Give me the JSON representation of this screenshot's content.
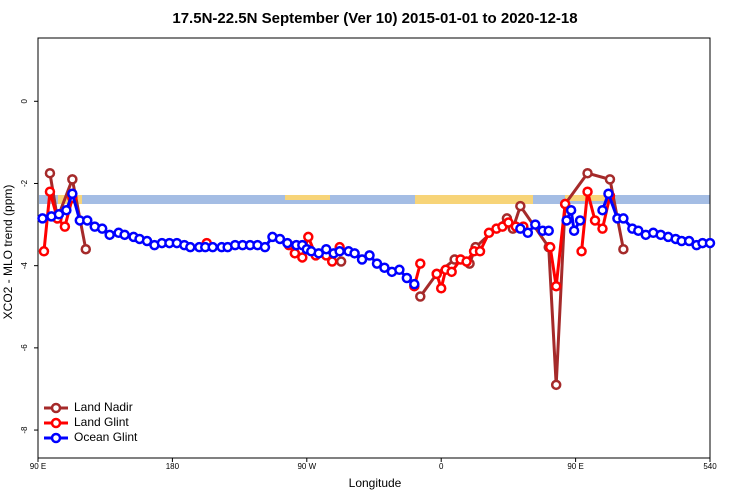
{
  "chart_data": {
    "type": "line",
    "title": "17.5N-22.5N September (Ver 10)   2015-01-01 to 2020-12-18",
    "xlabel": "Longitude",
    "ylabel": "XCO2 - MLO trend (ppm)",
    "xlim": [
      90,
      540
    ],
    "ylim": [
      -8.68,
      1.54
    ],
    "xticks": [
      {
        "value": 90,
        "label": "90 E"
      },
      180,
      {
        "value": 270,
        "label": "90 W"
      },
      {
        "value": 360,
        "label": "0"
      },
      {
        "value": 450,
        "label": "90 E"
      },
      540
    ],
    "yticks": [
      0,
      -2,
      -4,
      -6,
      -8
    ],
    "legend": "bottom-left",
    "series": [
      {
        "name": "Land Nadir",
        "color": "#a52a2a",
        "x": [
          98,
          103,
          113,
          122,
          null,
          293,
          null,
          346,
          357,
          369,
          379,
          383,
          404,
          408,
          413,
          432,
          437,
          443,
          458,
          473,
          482
        ],
        "values": [
          -1.75,
          -2.85,
          -1.9,
          -3.6,
          null,
          -3.9,
          null,
          -4.75,
          -4.2,
          -3.85,
          -3.95,
          -3.55,
          -2.85,
          -3.1,
          -2.55,
          -3.55,
          -6.9,
          -2.5,
          -1.75,
          -1.9,
          -3.6
        ]
      },
      {
        "name": "Land Glint",
        "color": "#ff0000",
        "x": [
          94,
          98,
          103,
          108,
          113,
          null,
          203,
          null,
          258,
          262,
          267,
          271,
          276,
          283,
          287,
          292,
          null,
          342,
          346,
          null,
          357,
          360,
          363,
          367,
          373,
          377,
          382,
          386,
          392,
          397,
          401,
          405,
          410,
          415,
          null,
          433,
          437,
          443,
          null,
          454,
          458,
          463,
          468,
          473
        ],
        "values": [
          -3.65,
          -2.2,
          -2.85,
          -3.05,
          -2.35,
          null,
          -3.45,
          null,
          -3.5,
          -3.7,
          -3.8,
          -3.3,
          -3.75,
          -3.75,
          -3.9,
          -3.55,
          null,
          -4.5,
          -3.95,
          null,
          -4.2,
          -4.55,
          -4.1,
          -4.15,
          -3.85,
          -3.9,
          -3.65,
          -3.65,
          -3.2,
          -3.1,
          -3.05,
          -2.95,
          -3.05,
          -3.05,
          null,
          -3.55,
          -4.5,
          -2.5,
          null,
          -3.65,
          -2.2,
          -2.9,
          -3.1,
          -2.3
        ]
      },
      {
        "name": "Ocean Glint",
        "color": "#0000ff",
        "x": [
          93,
          99,
          104,
          109,
          113,
          118,
          123,
          128,
          133,
          138,
          144,
          148,
          154,
          158,
          163,
          168,
          173,
          178,
          183,
          188,
          192,
          198,
          202,
          207,
          213,
          217,
          222,
          227,
          232,
          237,
          242,
          247,
          252,
          257,
          263,
          267,
          270,
          273,
          278,
          283,
          288,
          292,
          298,
          302,
          307,
          312,
          317,
          322,
          327,
          332,
          337,
          342,
          null,
          413,
          418,
          423,
          428,
          432,
          null,
          444,
          447,
          449,
          453,
          null,
          468,
          472,
          478,
          482,
          488,
          492,
          497,
          502,
          507,
          512,
          517,
          521,
          526,
          531,
          535,
          540
        ],
        "values": [
          -2.85,
          -2.8,
          -2.75,
          -2.65,
          -2.25,
          -2.9,
          -2.9,
          -3.05,
          -3.1,
          -3.25,
          -3.2,
          -3.25,
          -3.3,
          -3.35,
          -3.4,
          -3.5,
          -3.45,
          -3.45,
          -3.45,
          -3.5,
          -3.55,
          -3.55,
          -3.55,
          -3.55,
          -3.55,
          -3.55,
          -3.5,
          -3.5,
          -3.5,
          -3.5,
          -3.55,
          -3.3,
          -3.35,
          -3.45,
          -3.5,
          -3.5,
          -3.6,
          -3.65,
          -3.7,
          -3.6,
          -3.7,
          -3.65,
          -3.65,
          -3.7,
          -3.85,
          -3.75,
          -3.95,
          -4.05,
          -4.15,
          -4.1,
          -4.3,
          -4.45,
          null,
          -3.1,
          -3.2,
          -3.0,
          -3.15,
          -3.15,
          null,
          -2.9,
          -2.65,
          -3.15,
          -2.9,
          null,
          -2.65,
          -2.25,
          -2.85,
          -2.85,
          -3.1,
          -3.15,
          -3.25,
          -3.2,
          -3.25,
          -3.3,
          -3.35,
          -3.4,
          -3.4,
          -3.5,
          -3.45,
          -3.45
        ]
      }
    ]
  }
}
